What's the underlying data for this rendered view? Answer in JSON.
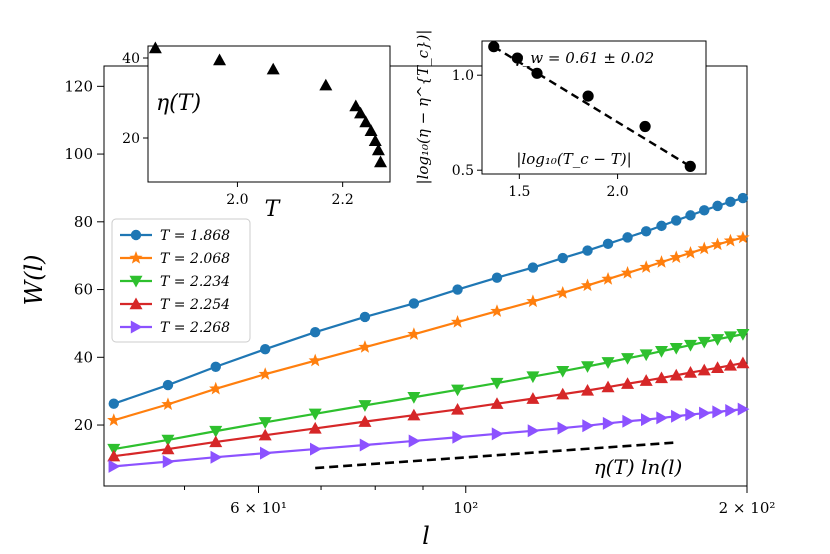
{
  "chart_data": [
    {
      "type": "line",
      "xlabel": "l",
      "ylabel": "W(l)",
      "x_scale": "log",
      "xlim": [
        41,
        200
      ],
      "ylim": [
        2,
        126
      ],
      "x_ticks": [
        {
          "value": 60,
          "label": "6 × 10¹"
        },
        {
          "value": 100,
          "label": "10²"
        },
        {
          "value": 200,
          "label": "2 × 10²"
        }
      ],
      "y_ticks": [
        20,
        40,
        60,
        80,
        100,
        120
      ],
      "x": [
        42,
        48,
        54,
        61,
        69,
        78,
        88,
        98,
        108,
        118,
        127,
        135,
        142,
        149,
        156,
        162,
        168,
        174,
        180,
        186,
        192,
        198
      ],
      "series": [
        {
          "name": "T = 1.868",
          "color": "#1f77b4",
          "marker": "circle",
          "values": [
            26.3,
            31.8,
            37.2,
            42.4,
            47.4,
            51.9,
            55.9,
            60.0,
            63.5,
            66.5,
            69.3,
            71.5,
            73.5,
            75.4,
            77.2,
            78.8,
            80.4,
            81.9,
            83.4,
            84.7,
            85.9,
            87.0
          ]
        },
        {
          "name": "T = 2.068",
          "color": "#ff7f0e",
          "marker": "star",
          "values": [
            21.4,
            26.1,
            30.7,
            35.0,
            39.0,
            43.0,
            46.8,
            50.4,
            53.6,
            56.5,
            59.0,
            61.2,
            63.1,
            64.9,
            66.6,
            68.1,
            69.5,
            70.8,
            72.1,
            73.3,
            74.4,
            75.3
          ]
        },
        {
          "name": "T = 2.234",
          "color": "#2ec02e",
          "marker": "triangle-down",
          "values": [
            12.9,
            15.6,
            18.2,
            20.8,
            23.3,
            25.8,
            28.2,
            30.4,
            32.4,
            34.3,
            35.9,
            37.3,
            38.5,
            39.7,
            40.8,
            41.8,
            42.7,
            43.6,
            44.5,
            45.3,
            46.1,
            46.8
          ]
        },
        {
          "name": "T = 2.254",
          "color": "#d62728",
          "marker": "triangle-up",
          "values": [
            10.8,
            12.9,
            15.0,
            17.0,
            19.0,
            21.0,
            22.9,
            24.6,
            26.3,
            27.8,
            29.1,
            30.2,
            31.2,
            32.2,
            33.1,
            33.9,
            34.7,
            35.5,
            36.2,
            36.9,
            37.6,
            38.3
          ]
        },
        {
          "name": "T = 2.268",
          "color": "#8c52ff",
          "marker": "triangle-right",
          "values": [
            7.8,
            9.2,
            10.5,
            11.7,
            12.9,
            14.1,
            15.3,
            16.4,
            17.4,
            18.3,
            19.1,
            19.8,
            20.5,
            21.1,
            21.6,
            22.1,
            22.6,
            23.1,
            23.5,
            23.9,
            24.3,
            24.7
          ]
        }
      ],
      "reference_line": {
        "label": "η(T) ln(l)",
        "x": [
          69,
          167
        ],
        "y": [
          7.3,
          14.8
        ],
        "style": "dashed"
      },
      "legend": "upper-left"
    },
    {
      "type": "scatter",
      "inset": "top-left",
      "xlabel": "T",
      "ylabel": "η(T)",
      "xlim": [
        1.83,
        2.29
      ],
      "ylim": [
        9,
        43
      ],
      "x_ticks": [
        2.0,
        2.2
      ],
      "y_ticks": [
        20,
        40
      ],
      "marker": "triangle-up",
      "color": "#000000",
      "points": [
        [
          1.844,
          42.5
        ],
        [
          1.966,
          39.5
        ],
        [
          2.068,
          37.2
        ],
        [
          2.168,
          33.2
        ],
        [
          2.225,
          28.0
        ],
        [
          2.234,
          26.2
        ],
        [
          2.244,
          24.0
        ],
        [
          2.254,
          21.8
        ],
        [
          2.262,
          19.3
        ],
        [
          2.268,
          17.0
        ],
        [
          2.272,
          14.0
        ]
      ]
    },
    {
      "type": "scatter",
      "inset": "top-right",
      "xlabel": "|log₁₀(T_c − T)|",
      "ylabel": "|log₁₀(η − η^{T_c})|",
      "annotation": "γ_w = 0.61 ± 0.02",
      "xlim": [
        1.31,
        2.45
      ],
      "ylim": [
        0.48,
        1.18
      ],
      "x_ticks": [
        1.5,
        2.0
      ],
      "y_ticks": [
        0.5,
        1.0
      ],
      "marker": "circle",
      "color": "#000000",
      "points": [
        [
          1.37,
          1.15
        ],
        [
          1.49,
          1.09
        ],
        [
          1.59,
          1.01
        ],
        [
          1.85,
          0.89
        ],
        [
          2.14,
          0.73
        ],
        [
          2.37,
          0.52
        ]
      ],
      "fit_line": {
        "x": [
          1.37,
          2.37
        ],
        "y": [
          1.15,
          0.52
        ],
        "style": "dashed"
      }
    }
  ]
}
